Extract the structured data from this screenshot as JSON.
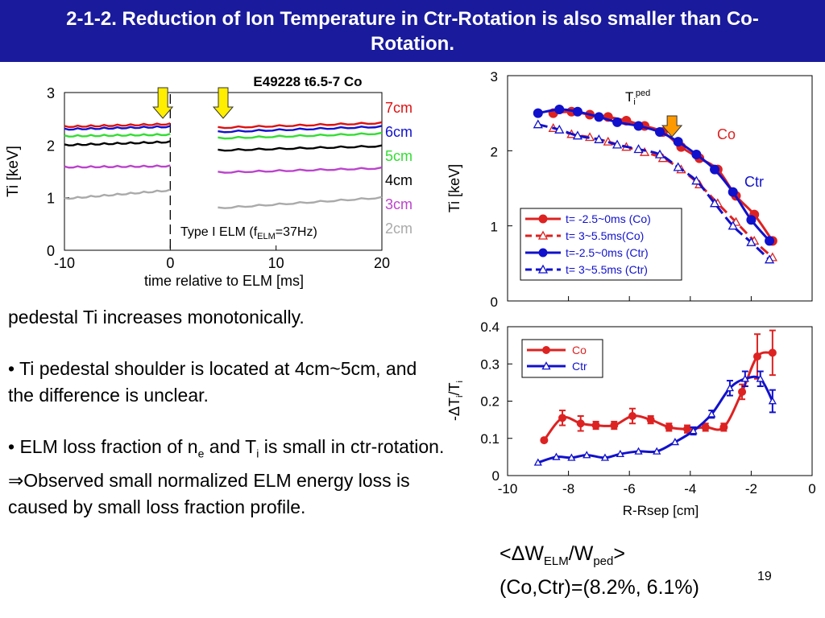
{
  "slide": {
    "title": "2-1-2. Reduction of Ion Temperature in Ctr-Rotation is also smaller than Co-Rotation.",
    "page_number": "19",
    "colors": {
      "title_bg": "#1a1a9c",
      "title_text": "#ffffff",
      "co": "#dd2222",
      "ctr": "#1111cc"
    }
  },
  "body": {
    "line1": "pedestal Ti increases monotonically.",
    "bullet1": "• Ti pedestal shoulder is located at 4cm~5cm, and the difference is unclear.",
    "bullet2_pre": "• ELM loss fraction of n",
    "bullet2_sub1": "e",
    "bullet2_mid": " and T",
    "bullet2_sub2": "i",
    "bullet2_post": " is  small in ctr-rotation.",
    "implies_symbol": "⇒",
    "conclusion": "Observed small normalized ELM energy loss is caused by small loss fraction profile."
  },
  "summary": {
    "lt": "<",
    "delta": "Δ",
    "w": "W",
    "sub_elm": "ELM",
    "slash_w": "/W",
    "sub_ped": "ped",
    "gt": ">",
    "values": "(Co,Ctr)=(8.2%, 6.1%)"
  },
  "chart_data": [
    {
      "id": "ti-time",
      "type": "line",
      "title": "E49228 t6.5-7 Co",
      "xlabel": "time relative to ELM [ms]",
      "ylabel": "Ti [keV]",
      "xlim": [
        -10,
        20
      ],
      "ylim": [
        0,
        3
      ],
      "xticks": [
        "-10",
        "0",
        "10",
        "20"
      ],
      "yticks": [
        "0",
        "1",
        "2",
        "3"
      ],
      "annotation_pre": "Type I ELM (f",
      "annotation_sub": "ELM",
      "annotation_post": "=37Hz)",
      "elm_marker_x": 0,
      "arrow_times": [
        -0.7,
        5
      ],
      "series": [
        {
          "name": "7cm",
          "color": "#dd1111",
          "before": [
            2.35,
            2.4
          ],
          "after": [
            2.33,
            2.42
          ]
        },
        {
          "name": "6cm",
          "color": "#1111cc",
          "before": [
            2.3,
            2.35
          ],
          "after": [
            2.25,
            2.35
          ]
        },
        {
          "name": "5cm",
          "color": "#33dd33",
          "before": [
            2.17,
            2.2
          ],
          "after": [
            2.13,
            2.22
          ]
        },
        {
          "name": "4cm",
          "color": "#000000",
          "before": [
            2.0,
            2.06
          ],
          "after": [
            1.9,
            1.98
          ]
        },
        {
          "name": "3cm",
          "color": "#bb44cc",
          "before": [
            1.58,
            1.6
          ],
          "after": [
            1.48,
            1.56
          ]
        },
        {
          "name": "2cm",
          "color": "#aaaaaa",
          "before": [
            0.98,
            1.14
          ],
          "after": [
            0.8,
            1.0
          ]
        }
      ]
    },
    {
      "id": "ti-profile",
      "type": "line",
      "ylabel": "Ti [keV]",
      "xlim": [
        -10,
        0
      ],
      "ylim": [
        0,
        3
      ],
      "yticks": [
        "0",
        "1",
        "2",
        "3"
      ],
      "label_tped": "T",
      "label_tped_sub": "i",
      "label_tped_sup": "ped",
      "label_co": "Co",
      "label_ctr": "Ctr",
      "arrow_x": -4.6,
      "series": [
        {
          "name": "t= -2.5~0ms (Co)",
          "color": "#dd2222",
          "marker": "circle",
          "dash": false,
          "x": [
            -8.5,
            -7.9,
            -7.3,
            -6.7,
            -6.1,
            -5.5,
            -4.9,
            -4.3,
            -3.7,
            -3.1,
            -2.5,
            -1.9,
            -1.3
          ],
          "y": [
            2.5,
            2.52,
            2.48,
            2.45,
            2.4,
            2.33,
            2.25,
            2.05,
            1.9,
            1.75,
            1.4,
            1.15,
            0.8
          ]
        },
        {
          "name": "t= 3~5.5ms(Co)",
          "color": "#dd2222",
          "marker": "triangle",
          "dash": true,
          "x": [
            -8.5,
            -7.9,
            -7.3,
            -6.7,
            -6.1,
            -5.5,
            -4.9,
            -4.3,
            -3.7,
            -3.1,
            -2.5,
            -1.9,
            -1.3
          ],
          "y": [
            2.3,
            2.22,
            2.18,
            2.12,
            2.05,
            1.98,
            1.9,
            1.75,
            1.55,
            1.3,
            1.05,
            0.8,
            0.58
          ]
        },
        {
          "name": "t=-2.5~0ms (Ctr)",
          "color": "#1111cc",
          "marker": "circle",
          "dash": false,
          "x": [
            -9.0,
            -8.3,
            -7.7,
            -7.0,
            -6.4,
            -5.7,
            -5.0,
            -4.4,
            -3.8,
            -3.2,
            -2.6,
            -2.0,
            -1.4
          ],
          "y": [
            2.5,
            2.55,
            2.52,
            2.45,
            2.38,
            2.33,
            2.25,
            2.12,
            1.95,
            1.75,
            1.45,
            1.08,
            0.8
          ]
        },
        {
          "name": "t= 3~5.5ms (Ctr)",
          "color": "#1111cc",
          "marker": "triangle",
          "dash": true,
          "x": [
            -9.0,
            -8.3,
            -7.7,
            -7.0,
            -6.4,
            -5.7,
            -5.0,
            -4.4,
            -3.8,
            -3.2,
            -2.6,
            -2.0,
            -1.4
          ],
          "y": [
            2.35,
            2.28,
            2.2,
            2.15,
            2.08,
            2.02,
            1.95,
            1.78,
            1.6,
            1.3,
            1.0,
            0.78,
            0.55
          ]
        }
      ]
    },
    {
      "id": "dti-profile",
      "type": "line",
      "xlabel": "R-Rsep [cm]",
      "ylabel_pre": "-ΔT",
      "ylabel_sub": "i",
      "ylabel_mid": "/T",
      "ylabel_sub2": "i",
      "xlim": [
        -10,
        0
      ],
      "ylim": [
        0,
        0.4
      ],
      "xticks": [
        "-10",
        "-8",
        "-6",
        "-4",
        "-2",
        "0"
      ],
      "yticks": [
        "0",
        "0.1",
        "0.2",
        "0.3",
        "0.4"
      ],
      "series": [
        {
          "name": "Co",
          "color": "#dd2222",
          "marker": "circle",
          "x": [
            -8.8,
            -8.2,
            -7.6,
            -7.1,
            -6.5,
            -5.9,
            -5.3,
            -4.7,
            -4.1,
            -3.5,
            -2.9,
            -2.3,
            -1.8,
            -1.3
          ],
          "y": [
            0.095,
            0.155,
            0.14,
            0.135,
            0.135,
            0.16,
            0.15,
            0.13,
            0.125,
            0.13,
            0.13,
            0.225,
            0.32,
            0.33
          ],
          "err": [
            0.0,
            0.02,
            0.02,
            0.01,
            0.01,
            0.02,
            0.01,
            0.01,
            0.01,
            0.01,
            0.01,
            0.02,
            0.06,
            0.06
          ]
        },
        {
          "name": "Ctr",
          "color": "#1111cc",
          "marker": "triangle",
          "x": [
            -9.0,
            -8.4,
            -7.9,
            -7.4,
            -6.8,
            -6.3,
            -5.7,
            -5.1,
            -4.5,
            -3.9,
            -3.3,
            -2.7,
            -2.2,
            -1.7,
            -1.3
          ],
          "y": [
            0.035,
            0.05,
            0.048,
            0.055,
            0.048,
            0.058,
            0.065,
            0.065,
            0.09,
            0.12,
            0.165,
            0.235,
            0.26,
            0.26,
            0.2
          ],
          "err": [
            0.0,
            0.0,
            0.0,
            0.0,
            0.0,
            0.0,
            0.0,
            0.0,
            0.0,
            0.01,
            0.01,
            0.02,
            0.02,
            0.02,
            0.03
          ]
        }
      ]
    }
  ]
}
